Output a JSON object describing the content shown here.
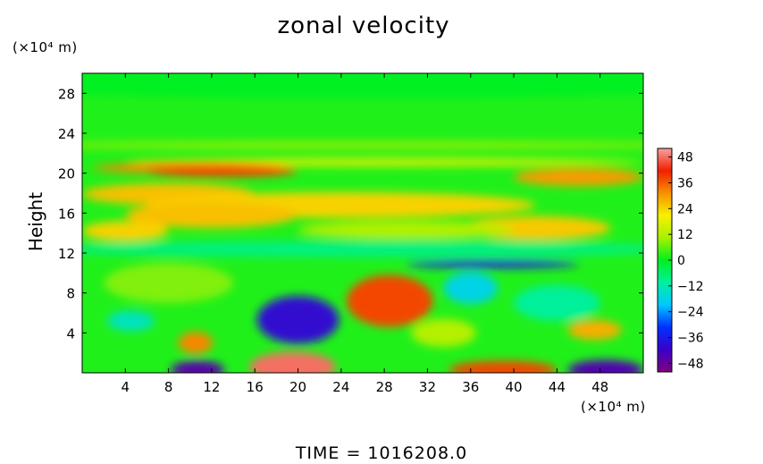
{
  "chart_data": {
    "type": "heatmap",
    "title": "zonal velocity",
    "ylabel": "Height",
    "xlabel": "",
    "y_unit": "(×10⁴ m)",
    "x_unit": "(×10⁴ m)",
    "footer": "TIME  =  1016208.0",
    "xlim": [
      0,
      52
    ],
    "ylim": [
      0,
      30
    ],
    "x_ticks": [
      4,
      8,
      12,
      16,
      20,
      24,
      28,
      32,
      36,
      40,
      44,
      48
    ],
    "y_ticks": [
      4,
      8,
      12,
      16,
      20,
      24,
      28
    ],
    "colorbar": {
      "min": -52,
      "max": 52,
      "ticks": [
        48,
        36,
        24,
        12,
        0,
        -12,
        -24,
        -36,
        -48
      ],
      "tick_labels": [
        "48",
        "36",
        "24",
        "12",
        "0",
        "−12",
        "−24",
        "−36",
        "−48"
      ],
      "colors": [
        "#800080",
        "#3a00c8",
        "#0030ff",
        "#00c8ff",
        "#00f0a0",
        "#00f020",
        "#a8f000",
        "#f8f000",
        "#f89000",
        "#f02000",
        "#f8a0a0"
      ]
    },
    "background_value": 2,
    "features": [
      {
        "x": 26,
        "y": 29,
        "rx": 40,
        "ry": 1.5,
        "value": 0
      },
      {
        "x": 26,
        "y": 22.8,
        "rx": 32,
        "ry": 0.35,
        "value": 10
      },
      {
        "x": 28,
        "y": 21.1,
        "rx": 24,
        "ry": 0.4,
        "value": 18
      },
      {
        "x": 10,
        "y": 20.5,
        "rx": 9,
        "ry": 0.55,
        "value": 32
      },
      {
        "x": 13,
        "y": 20.2,
        "rx": 7,
        "ry": 0.6,
        "value": 38
      },
      {
        "x": 46,
        "y": 19.6,
        "rx": 6,
        "ry": 0.9,
        "value": 30
      },
      {
        "x": 8,
        "y": 17.9,
        "rx": 8,
        "ry": 1.1,
        "value": 26
      },
      {
        "x": 24,
        "y": 16.8,
        "rx": 18,
        "ry": 1.3,
        "value": 24
      },
      {
        "x": 12,
        "y": 15.8,
        "rx": 8,
        "ry": 1.3,
        "value": 26
      },
      {
        "x": 42,
        "y": 14.5,
        "rx": 7,
        "ry": 1.2,
        "value": 25
      },
      {
        "x": 4,
        "y": 14.2,
        "rx": 4,
        "ry": 1.0,
        "value": 24
      },
      {
        "x": 30,
        "y": 14.3,
        "rx": 10,
        "ry": 0.9,
        "value": 12
      },
      {
        "x": 26,
        "y": 12.4,
        "rx": 30,
        "ry": 0.8,
        "value": -8
      },
      {
        "x": 38,
        "y": 10.9,
        "rx": 8,
        "ry": 0.4,
        "value": -36
      },
      {
        "x": 20,
        "y": 5.3,
        "rx": 3.8,
        "ry": 2.4,
        "value": -40
      },
      {
        "x": 28.5,
        "y": 7.2,
        "rx": 4,
        "ry": 2.6,
        "value": 38
      },
      {
        "x": 10.5,
        "y": 3.0,
        "rx": 1.6,
        "ry": 1.1,
        "value": 32
      },
      {
        "x": 10.7,
        "y": 0.3,
        "rx": 2.5,
        "ry": 0.9,
        "value": -46
      },
      {
        "x": 19.5,
        "y": 0.6,
        "rx": 4,
        "ry": 1.5,
        "value": 48
      },
      {
        "x": 39,
        "y": 0.3,
        "rx": 5,
        "ry": 0.9,
        "value": 38
      },
      {
        "x": 48.5,
        "y": 0.3,
        "rx": 3.5,
        "ry": 1.0,
        "value": -45
      },
      {
        "x": 47.5,
        "y": 4.3,
        "rx": 2.5,
        "ry": 1.0,
        "value": 28
      },
      {
        "x": 4.5,
        "y": 5.2,
        "rx": 2.2,
        "ry": 1.0,
        "value": -14
      },
      {
        "x": 36,
        "y": 8.5,
        "rx": 2.5,
        "ry": 1.6,
        "value": -18
      },
      {
        "x": 33.5,
        "y": 4.0,
        "rx": 3,
        "ry": 1.4,
        "value": 12
      },
      {
        "x": 44,
        "y": 7,
        "rx": 4,
        "ry": 1.8,
        "value": -10
      },
      {
        "x": 8,
        "y": 9,
        "rx": 6,
        "ry": 2.0,
        "value": 8
      }
    ]
  }
}
